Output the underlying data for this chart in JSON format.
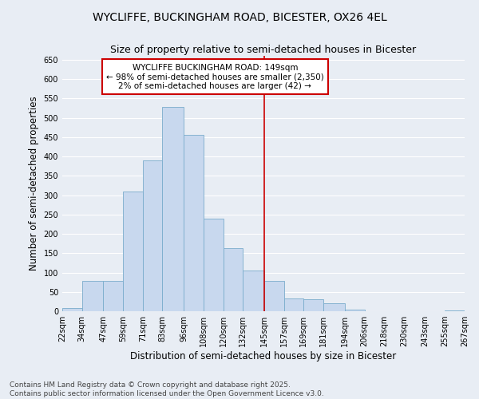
{
  "title": "WYCLIFFE, BUCKINGHAM ROAD, BICESTER, OX26 4EL",
  "subtitle": "Size of property relative to semi-detached houses in Bicester",
  "xlabel": "Distribution of semi-detached houses by size in Bicester",
  "ylabel": "Number of semi-detached properties",
  "footnote1": "Contains HM Land Registry data © Crown copyright and database right 2025.",
  "footnote2": "Contains public sector information licensed under the Open Government Licence v3.0.",
  "property_label": "WYCLIFFE BUCKINGHAM ROAD: 149sqm",
  "annotation_line1": "← 98% of semi-detached houses are smaller (2,350)",
  "annotation_line2": "2% of semi-detached houses are larger (42) →",
  "bar_left_edges": [
    22,
    34,
    47,
    59,
    71,
    83,
    96,
    108,
    120,
    132,
    145,
    157,
    169,
    181,
    194,
    206,
    218,
    230,
    243,
    255
  ],
  "bar_widths": [
    12,
    13,
    12,
    12,
    12,
    13,
    12,
    12,
    12,
    13,
    12,
    12,
    12,
    13,
    12,
    12,
    12,
    13,
    12,
    12
  ],
  "bar_heights": [
    8,
    78,
    78,
    310,
    390,
    528,
    455,
    240,
    162,
    105,
    78,
    32,
    30,
    20,
    5,
    0,
    0,
    0,
    0,
    2
  ],
  "tick_labels": [
    "22sqm",
    "34sqm",
    "47sqm",
    "59sqm",
    "71sqm",
    "83sqm",
    "96sqm",
    "108sqm",
    "120sqm",
    "132sqm",
    "145sqm",
    "157sqm",
    "169sqm",
    "181sqm",
    "194sqm",
    "206sqm",
    "218sqm",
    "230sqm",
    "243sqm",
    "255sqm",
    "267sqm"
  ],
  "tick_positions": [
    22,
    34,
    47,
    59,
    71,
    83,
    96,
    108,
    120,
    132,
    145,
    157,
    169,
    181,
    194,
    206,
    218,
    230,
    243,
    255,
    267
  ],
  "bar_color": "#c8d8ee",
  "bar_edge_color": "#7aaccc",
  "vline_color": "#cc0000",
  "vline_x": 145,
  "ylim": [
    0,
    660
  ],
  "yticks": [
    0,
    50,
    100,
    150,
    200,
    250,
    300,
    350,
    400,
    450,
    500,
    550,
    600,
    650
  ],
  "xlim": [
    22,
    267
  ],
  "background_color": "#e8edf4",
  "plot_bg_color": "#e8edf4",
  "grid_color": "#ffffff",
  "annotation_box_color": "#cc0000",
  "title_fontsize": 10,
  "subtitle_fontsize": 9,
  "axis_label_fontsize": 8.5,
  "tick_fontsize": 7,
  "annotation_fontsize": 7.5,
  "footnote_fontsize": 6.5
}
